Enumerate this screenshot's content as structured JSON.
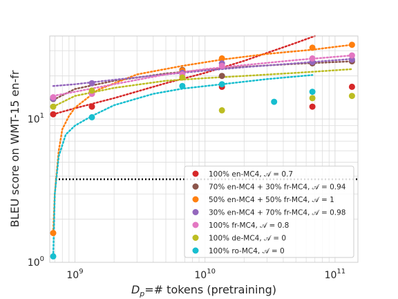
{
  "chart_data": {
    "type": "scatter",
    "xscale": "log",
    "yscale": "log",
    "xlim": [
      640000000.0,
      150000000000.0
    ],
    "ylim": [
      1,
      38
    ],
    "xlabel_main": "D",
    "xlabel_sub": "p",
    "xlabel_rest": "=# tokens (pretraining)",
    "ylabel": "BLEU score on WMT-15 en-fr",
    "xticks": [
      {
        "value": 1000000000.0,
        "base": "10",
        "exp": "9"
      },
      {
        "value": 10000000000.0,
        "base": "10",
        "exp": "10"
      },
      {
        "value": 100000000000.0,
        "base": "10",
        "exp": "11"
      }
    ],
    "yticks": [
      {
        "value": 1,
        "label": "10",
        "exp": "0"
      },
      {
        "value": 10,
        "label": "10",
        "exp": "1"
      }
    ],
    "grid": true,
    "legend_position": "lower right",
    "reference_line": {
      "y": 3.8,
      "style": "dotted",
      "color": "#000000"
    },
    "series": [
      {
        "name": "100% en-MC4, 𝒜 = 0.7",
        "color": "#d62728",
        "points": [
          [
            680000000.0,
            10.8
          ],
          [
            1350000000.0,
            12.2
          ],
          [
            6700000000.0,
            21.5
          ],
          [
            13500000000.0,
            16.8
          ],
          [
            67000000000.0,
            12.2
          ],
          [
            135000000000.0,
            16.8
          ]
        ],
        "fit": [
          [
            680000000.0,
            10.8
          ],
          [
            1000000000.0,
            11.9
          ],
          [
            2000000000.0,
            14.0
          ],
          [
            5000000000.0,
            17.8
          ],
          [
            10000000000.0,
            21.0
          ],
          [
            20000000000.0,
            25.5
          ],
          [
            50000000000.0,
            34.0
          ],
          [
            70000000000.0,
            38.0
          ]
        ]
      },
      {
        "name": "70% en-MC4 + 30% fr-MC4, 𝒜 = 0.94",
        "color": "#8c564b",
        "points": [
          [
            680000000.0,
            13.8
          ],
          [
            1350000000.0,
            15.5
          ],
          [
            6700000000.0,
            22.0
          ],
          [
            13500000000.0,
            20.0
          ],
          [
            67000000000.0,
            24.5
          ],
          [
            135000000000.0,
            25.3
          ]
        ],
        "fit": [
          [
            680000000.0,
            13.6
          ],
          [
            1000000000.0,
            16.2
          ],
          [
            2000000000.0,
            18.5
          ],
          [
            5000000000.0,
            20.8
          ],
          [
            10000000000.0,
            22.0
          ],
          [
            20000000000.0,
            23.2
          ],
          [
            50000000000.0,
            24.3
          ],
          [
            135000000000.0,
            25.3
          ]
        ]
      },
      {
        "name": "50% en-MC4 + 50% fr-MC4, 𝒜 = 1",
        "color": "#ff7f0e",
        "points": [
          [
            680000000.0,
            1.6
          ],
          [
            1350000000.0,
            15.5
          ],
          [
            6700000000.0,
            21.8
          ],
          [
            13500000000.0,
            26.5
          ],
          [
            67000000000.0,
            31.5
          ],
          [
            135000000000.0,
            33.0
          ]
        ],
        "fit": [
          [
            680000000.0,
            1.6
          ],
          [
            700000000.0,
            3.0
          ],
          [
            750000000.0,
            6.0
          ],
          [
            800000000.0,
            8.5
          ],
          [
            900000000.0,
            10.5
          ],
          [
            1000000000.0,
            12.0
          ],
          [
            1500000000.0,
            16.0
          ],
          [
            3000000000.0,
            20.5
          ],
          [
            6700000000.0,
            23.5
          ],
          [
            13500000000.0,
            26.0
          ],
          [
            30000000000.0,
            28.5
          ],
          [
            67000000000.0,
            30.5
          ],
          [
            135000000000.0,
            33.0
          ]
        ]
      },
      {
        "name": "30% en-MC4 + 70% fr-MC4, 𝒜 = 0.98",
        "color": "#9467bd",
        "points": [
          [
            680000000.0,
            13.9
          ],
          [
            1350000000.0,
            17.8
          ],
          [
            6700000000.0,
            21.0
          ],
          [
            13500000000.0,
            24.5
          ],
          [
            67000000000.0,
            25.0
          ],
          [
            135000000000.0,
            26.0
          ]
        ],
        "fit": [
          [
            680000000.0,
            17.0
          ],
          [
            1000000000.0,
            17.5
          ],
          [
            2000000000.0,
            18.8
          ],
          [
            5000000000.0,
            20.5
          ],
          [
            10000000000.0,
            21.8
          ],
          [
            20000000000.0,
            23.0
          ],
          [
            50000000000.0,
            24.5
          ],
          [
            135000000000.0,
            26.3
          ]
        ]
      },
      {
        "name": "100% fr-MC4, 𝒜 = 0.8",
        "color": "#e377c2",
        "points": [
          [
            680000000.0,
            14.2
          ],
          [
            1350000000.0,
            15.0
          ],
          [
            6700000000.0,
            20.5
          ],
          [
            13500000000.0,
            23.5
          ],
          [
            67000000000.0,
            26.5
          ],
          [
            135000000000.0,
            27.8
          ]
        ],
        "fit": [
          [
            680000000.0,
            14.5
          ],
          [
            1000000000.0,
            15.5
          ],
          [
            2000000000.0,
            17.5
          ],
          [
            5000000000.0,
            20.5
          ],
          [
            10000000000.0,
            22.3
          ],
          [
            20000000000.0,
            23.8
          ],
          [
            50000000000.0,
            25.8
          ],
          [
            135000000000.0,
            27.8
          ]
        ]
      },
      {
        "name": "100% de-MC4, 𝒜 = 0",
        "color": "#bcbd22",
        "points": [
          [
            680000000.0,
            12.2
          ],
          [
            1350000000.0,
            15.8
          ],
          [
            6700000000.0,
            19.5
          ],
          [
            13500000000.0,
            11.5
          ],
          [
            67000000000.0,
            14.0
          ],
          [
            135000000000.0,
            14.5
          ]
        ],
        "fit": [
          [
            680000000.0,
            12.2
          ],
          [
            1000000000.0,
            14.5
          ],
          [
            2000000000.0,
            16.5
          ],
          [
            5000000000.0,
            18.5
          ],
          [
            10000000000.0,
            19.3
          ],
          [
            20000000000.0,
            20.0
          ],
          [
            50000000000.0,
            21.0
          ],
          [
            135000000000.0,
            22.3
          ]
        ]
      },
      {
        "name": "100% ro-MC4, 𝒜 = 0",
        "color": "#17becf",
        "points": [
          [
            680000000.0,
            1.1
          ],
          [
            1350000000.0,
            10.3
          ],
          [
            6700000000.0,
            17.0
          ],
          [
            13500000000.0,
            17.5
          ],
          [
            34000000000.0,
            13.2
          ],
          [
            67000000000.0,
            15.5
          ]
        ],
        "fit": [
          [
            680000000.0,
            1.1
          ],
          [
            700000000.0,
            3.0
          ],
          [
            750000000.0,
            5.5
          ],
          [
            850000000.0,
            7.8
          ],
          [
            1000000000.0,
            9.0
          ],
          [
            1350000000.0,
            10.5
          ],
          [
            2000000000.0,
            12.5
          ],
          [
            4000000000.0,
            15.0
          ],
          [
            6700000000.0,
            16.3
          ],
          [
            13500000000.0,
            17.5
          ],
          [
            30000000000.0,
            19.0
          ],
          [
            67000000000.0,
            20.3
          ]
        ]
      }
    ]
  }
}
